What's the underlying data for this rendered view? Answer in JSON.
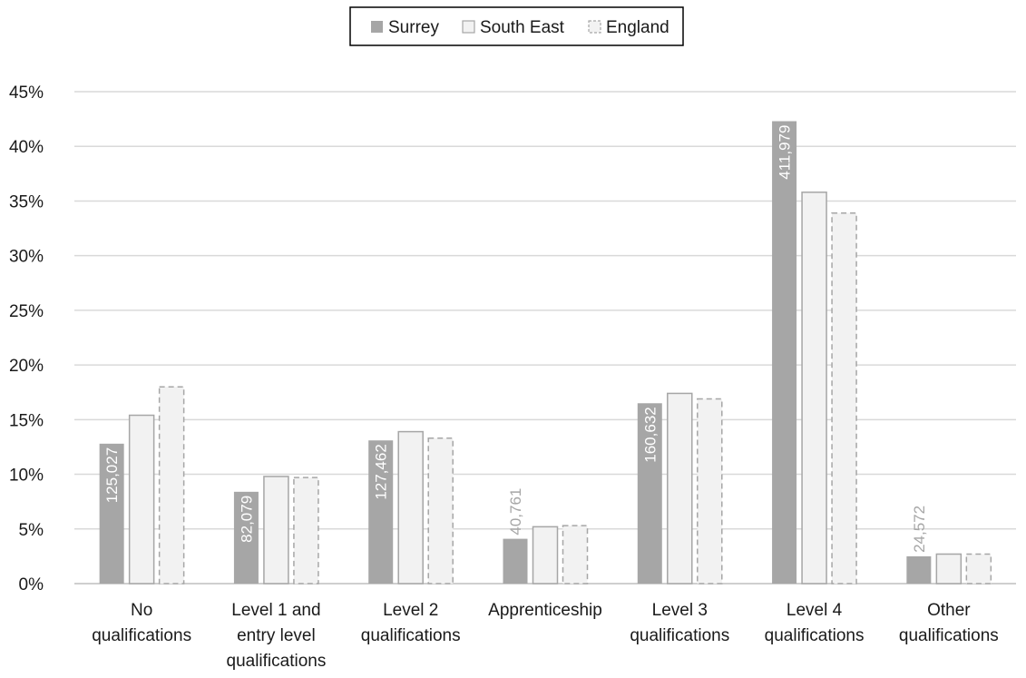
{
  "chart_data": {
    "type": "bar",
    "categories": [
      [
        "No",
        "qualifications"
      ],
      [
        "Level 1 and",
        "entry level",
        "qualifications"
      ],
      [
        "Level 2",
        "qualifications"
      ],
      [
        "Apprenticeship"
      ],
      [
        "Level 3",
        "qualifications"
      ],
      [
        "Level 4",
        "qualifications"
      ],
      [
        "Other",
        "qualifications"
      ]
    ],
    "series": [
      {
        "name": "Surrey",
        "values": [
          12.8,
          8.4,
          13.1,
          4.1,
          16.5,
          42.3,
          2.5
        ],
        "fill": "#a6a6a6",
        "stroke": "#a6a6a6",
        "dashed": false
      },
      {
        "name": "South East",
        "values": [
          15.4,
          9.8,
          13.9,
          5.2,
          17.4,
          35.8,
          2.7
        ],
        "fill": "#f2f2f2",
        "stroke": "#a6a6a6",
        "dashed": false
      },
      {
        "name": "England",
        "values": [
          18.0,
          9.7,
          13.3,
          5.3,
          16.9,
          33.9,
          2.7
        ],
        "fill": "#f2f2f2",
        "stroke": "#a6a6a6",
        "dashed": true
      }
    ],
    "data_labels": {
      "series_index": 0,
      "labels": [
        "125,027",
        "82,079",
        "127,462",
        "40,761",
        "160,632",
        "411,979",
        "24,572"
      ],
      "inside": [
        true,
        true,
        true,
        false,
        true,
        true,
        false
      ]
    },
    "y_ticks": [
      "0%",
      "5%",
      "10%",
      "15%",
      "20%",
      "25%",
      "30%",
      "35%",
      "40%",
      "45%"
    ],
    "ylim": [
      0,
      45
    ],
    "y_step": 5,
    "grid": true,
    "legend": "top-center",
    "title": "",
    "xlabel": "",
    "ylabel": ""
  }
}
